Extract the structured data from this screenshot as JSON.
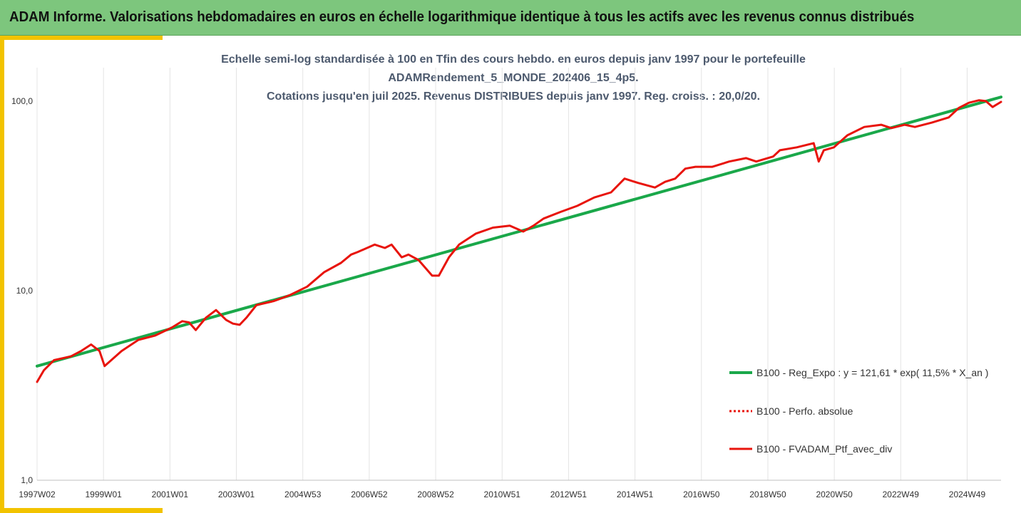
{
  "header": {
    "title": "ADAM Informe. Valorisations hebdomadaires en euros en échelle logarithmique identique à tous les actifs avec les revenus connus distribués",
    "background": "#7dc67d",
    "accent": "#f2c300"
  },
  "chart_data": {
    "type": "line",
    "title_lines": [
      "Echelle semi-log standardisée à 100 en Tfin des cours hebdo.  en euros depuis janv 1997 pour le portefeuille",
      "ADAMRendement_5_MONDE_202406_15_4p5.",
      "Cotations  jusqu'en juil 2025. Revenus DISTRIBUES depuis janv 1997. Reg. croiss. : 20,0/20."
    ],
    "y_scale": "log",
    "ylim": [
      1,
      150
    ],
    "y_ticks": [
      "1,0",
      "10,0",
      "100,0"
    ],
    "x_range": [
      1997.0,
      2025.55
    ],
    "x_tick_labels": [
      "1997W02",
      "1999W01",
      "2001W01",
      "2003W01",
      "2004W53",
      "2006W52",
      "2008W52",
      "2010W51",
      "2012W51",
      "2014W51",
      "2016W50",
      "2018W50",
      "2020W50",
      "2022W49",
      "2024W49"
    ],
    "grid": "vertical",
    "legend_position": "right",
    "series": [
      {
        "name": "B100 - Reg_Expo : y = 121,61 * exp( 11,5% *  X_an )",
        "color": "#1aa84a",
        "style": "solid",
        "x": [
          1997.0,
          2025.55
        ],
        "y": [
          4.0,
          105.0
        ]
      },
      {
        "name": "B100 - Perfo. absolue",
        "color": "#e8140c",
        "style": "dotted",
        "x": [],
        "y": []
      },
      {
        "name": "B100 - FVADAM_Ptf_avec_div",
        "color": "#e8140c",
        "style": "solid",
        "x": [
          1997.0,
          1997.2,
          1997.5,
          1998.0,
          1998.3,
          1998.6,
          1998.85,
          1999.0,
          1999.5,
          2000.0,
          2000.5,
          2001.0,
          2001.3,
          2001.5,
          2001.7,
          2002.0,
          2002.3,
          2002.6,
          2002.8,
          2003.0,
          2003.2,
          2003.5,
          2004.0,
          2004.3,
          2004.5,
          2005.0,
          2005.5,
          2006.0,
          2006.3,
          2006.5,
          2007.0,
          2007.3,
          2007.5,
          2007.8,
          2008.0,
          2008.3,
          2008.7,
          2008.9,
          2009.2,
          2009.5,
          2010.0,
          2010.5,
          2011.0,
          2011.4,
          2011.7,
          2012.0,
          2012.5,
          2013.0,
          2013.5,
          2014.0,
          2014.4,
          2014.8,
          2015.3,
          2015.6,
          2015.9,
          2016.2,
          2016.5,
          2017.0,
          2017.5,
          2018.0,
          2018.3,
          2018.8,
          2019.0,
          2019.5,
          2020.0,
          2020.15,
          2020.3,
          2020.6,
          2021.0,
          2021.5,
          2022.0,
          2022.3,
          2022.7,
          2023.0,
          2023.5,
          2024.0,
          2024.3,
          2024.6,
          2024.9,
          2025.1,
          2025.3,
          2025.55
        ],
        "y": [
          3.3,
          3.8,
          4.3,
          4.5,
          4.8,
          5.2,
          4.8,
          4.0,
          4.8,
          5.5,
          5.8,
          6.4,
          6.9,
          6.8,
          6.2,
          7.2,
          7.9,
          7.0,
          6.7,
          6.6,
          7.2,
          8.4,
          8.8,
          9.2,
          9.5,
          10.5,
          12.5,
          14.0,
          15.5,
          16.0,
          17.5,
          16.8,
          17.5,
          15.0,
          15.5,
          14.5,
          12.0,
          12.0,
          15.0,
          17.5,
          20.0,
          21.5,
          22.0,
          20.5,
          22.0,
          24.0,
          26.0,
          28.0,
          31.0,
          33.0,
          39.0,
          37.0,
          35.0,
          37.5,
          39.0,
          44.0,
          45.0,
          45.0,
          48.0,
          50.0,
          48.0,
          51.0,
          55.0,
          57.0,
          60.0,
          48.0,
          55.0,
          57.0,
          66.0,
          73.0,
          75.0,
          72.0,
          75.0,
          73.0,
          77.0,
          82.0,
          92.0,
          98.0,
          101.0,
          100.0,
          93.0,
          99.0
        ]
      }
    ]
  }
}
